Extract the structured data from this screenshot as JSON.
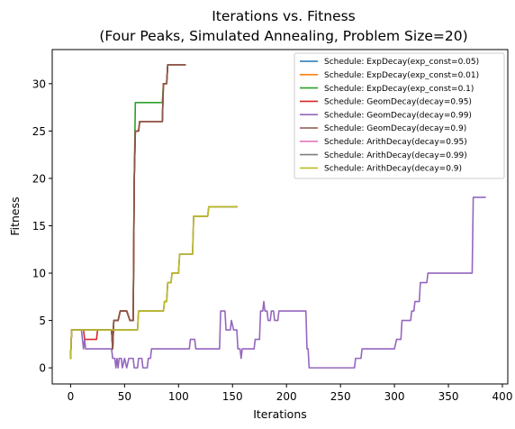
{
  "chart_data": {
    "type": "line",
    "title_line1": "Iterations vs. Fitness",
    "title_line2": "(Four Peaks, Simulated Annealing, Problem Size=20)",
    "xlabel": "Iterations",
    "ylabel": "Fitness",
    "xlim": [
      -17,
      405
    ],
    "ylim": [
      -1.7,
      33.6
    ],
    "xticks": [
      0,
      50,
      100,
      150,
      200,
      250,
      300,
      350,
      400
    ],
    "yticks": [
      0,
      5,
      10,
      15,
      20,
      25,
      30
    ],
    "grid": false,
    "legend_position": "top-right",
    "series": [
      {
        "name": "Schedule: ExpDecay(exp_const=0.05)",
        "color": "#1f77b4",
        "points": [
          [
            0,
            1
          ],
          [
            1,
            4
          ],
          [
            10,
            4
          ],
          [
            12,
            4
          ],
          [
            35,
            4
          ],
          [
            38,
            4
          ],
          [
            39,
            2
          ],
          [
            40,
            5
          ],
          [
            44,
            5
          ],
          [
            46,
            6
          ],
          [
            52,
            6
          ],
          [
            55,
            5
          ],
          [
            58,
            5
          ],
          [
            59,
            20
          ],
          [
            60,
            25
          ],
          [
            63,
            25
          ],
          [
            64,
            26
          ],
          [
            85,
            26
          ],
          [
            86,
            30
          ],
          [
            89,
            30
          ],
          [
            90,
            32
          ],
          [
            106,
            32
          ]
        ]
      },
      {
        "name": "Schedule: ExpDecay(exp_const=0.01)",
        "color": "#ff7f0e",
        "points": [
          [
            0,
            1
          ],
          [
            1,
            4
          ],
          [
            10,
            4
          ],
          [
            12,
            4
          ],
          [
            35,
            4
          ],
          [
            38,
            4
          ],
          [
            39,
            2
          ],
          [
            40,
            5
          ],
          [
            44,
            5
          ],
          [
            46,
            6
          ],
          [
            52,
            6
          ],
          [
            55,
            5
          ],
          [
            58,
            5
          ],
          [
            59,
            20
          ],
          [
            60,
            25
          ],
          [
            63,
            25
          ],
          [
            64,
            26
          ],
          [
            85,
            26
          ],
          [
            86,
            30
          ],
          [
            89,
            30
          ],
          [
            90,
            32
          ],
          [
            106,
            32
          ]
        ]
      },
      {
        "name": "Schedule: ExpDecay(exp_const=0.1)",
        "color": "#2ca02c",
        "points": [
          [
            0,
            1
          ],
          [
            1,
            4
          ],
          [
            10,
            4
          ],
          [
            12,
            4
          ],
          [
            35,
            4
          ],
          [
            38,
            4
          ],
          [
            39,
            2
          ],
          [
            40,
            5
          ],
          [
            44,
            5
          ],
          [
            46,
            6
          ],
          [
            52,
            6
          ],
          [
            55,
            5
          ],
          [
            58,
            5
          ],
          [
            59,
            20
          ],
          [
            60,
            28
          ],
          [
            85,
            28
          ],
          [
            86,
            30
          ],
          [
            89,
            30
          ],
          [
            90,
            32
          ],
          [
            106,
            32
          ]
        ]
      },
      {
        "name": "Schedule: GeomDecay(decay=0.95)",
        "color": "#d62728",
        "points": [
          [
            0,
            1
          ],
          [
            1,
            4
          ],
          [
            10,
            4
          ],
          [
            12,
            4
          ],
          [
            13,
            3
          ],
          [
            18,
            3
          ],
          [
            19,
            3
          ],
          [
            24,
            3
          ],
          [
            25,
            4
          ],
          [
            35,
            4
          ],
          [
            38,
            4
          ],
          [
            39,
            2
          ],
          [
            40,
            5
          ],
          [
            44,
            5
          ],
          [
            46,
            6
          ],
          [
            52,
            6
          ],
          [
            55,
            5
          ],
          [
            58,
            5
          ],
          [
            59,
            20
          ],
          [
            60,
            25
          ],
          [
            63,
            25
          ],
          [
            64,
            26
          ],
          [
            85,
            26
          ],
          [
            86,
            30
          ],
          [
            89,
            30
          ],
          [
            90,
            32
          ],
          [
            106,
            32
          ]
        ]
      },
      {
        "name": "Schedule: GeomDecay(decay=0.99)",
        "color": "#9467bd",
        "points": [
          [
            0,
            1
          ],
          [
            1,
            4
          ],
          [
            6,
            4
          ],
          [
            10,
            4
          ],
          [
            11,
            3
          ],
          [
            12,
            2
          ],
          [
            13,
            3
          ],
          [
            14,
            2
          ],
          [
            38,
            2
          ],
          [
            39,
            1
          ],
          [
            41,
            1
          ],
          [
            42,
            0
          ],
          [
            43,
            1
          ],
          [
            44,
            0
          ],
          [
            45,
            1
          ],
          [
            47,
            1
          ],
          [
            48,
            0
          ],
          [
            50,
            1
          ],
          [
            52,
            0
          ],
          [
            54,
            1
          ],
          [
            58,
            1
          ],
          [
            59,
            0
          ],
          [
            62,
            0
          ],
          [
            63,
            1
          ],
          [
            66,
            1
          ],
          [
            67,
            0
          ],
          [
            70,
            0
          ],
          [
            71,
            0
          ],
          [
            72,
            1
          ],
          [
            74,
            1
          ],
          [
            75,
            2
          ],
          [
            90,
            2
          ],
          [
            95,
            2
          ],
          [
            96,
            2
          ],
          [
            110,
            2
          ],
          [
            111,
            3
          ],
          [
            115,
            3
          ],
          [
            116,
            2
          ],
          [
            124,
            2
          ],
          [
            125,
            2
          ],
          [
            129,
            2
          ],
          [
            130,
            2
          ],
          [
            138,
            2
          ],
          [
            139,
            6
          ],
          [
            143,
            6
          ],
          [
            144,
            4
          ],
          [
            148,
            4
          ],
          [
            149,
            5
          ],
          [
            151,
            4
          ],
          [
            154,
            4
          ],
          [
            155,
            2
          ],
          [
            157,
            2
          ],
          [
            158,
            1
          ],
          [
            159,
            2
          ],
          [
            165,
            2
          ],
          [
            166,
            2
          ],
          [
            170,
            2
          ],
          [
            171,
            3
          ],
          [
            175,
            3
          ],
          [
            176,
            6
          ],
          [
            178,
            6
          ],
          [
            179,
            7
          ],
          [
            180,
            6
          ],
          [
            182,
            6
          ],
          [
            183,
            5
          ],
          [
            185,
            5
          ],
          [
            186,
            6
          ],
          [
            188,
            6
          ],
          [
            189,
            5
          ],
          [
            192,
            5
          ],
          [
            193,
            6
          ],
          [
            218,
            6
          ],
          [
            219,
            2
          ],
          [
            220,
            2
          ],
          [
            221,
            0
          ],
          [
            258,
            0
          ],
          [
            262,
            0
          ],
          [
            263,
            0
          ],
          [
            264,
            1
          ],
          [
            268,
            1
          ],
          [
            269,
            1
          ],
          [
            270,
            2
          ],
          [
            285,
            2
          ],
          [
            290,
            2
          ],
          [
            300,
            2
          ],
          [
            302,
            3
          ],
          [
            306,
            3
          ],
          [
            307,
            5
          ],
          [
            315,
            5
          ],
          [
            316,
            6
          ],
          [
            318,
            6
          ],
          [
            319,
            7
          ],
          [
            323,
            7
          ],
          [
            324,
            9
          ],
          [
            326,
            9
          ],
          [
            327,
            9
          ],
          [
            330,
            9
          ],
          [
            331,
            10
          ],
          [
            345,
            10
          ],
          [
            350,
            10
          ],
          [
            360,
            10
          ],
          [
            372,
            10
          ],
          [
            373,
            18
          ],
          [
            375,
            18
          ],
          [
            380,
            18
          ],
          [
            384,
            18
          ]
        ]
      },
      {
        "name": "Schedule: GeomDecay(decay=0.9)",
        "color": "#8c564b",
        "points": [
          [
            0,
            1
          ],
          [
            1,
            4
          ],
          [
            10,
            4
          ],
          [
            12,
            4
          ],
          [
            35,
            4
          ],
          [
            38,
            4
          ],
          [
            39,
            2
          ],
          [
            40,
            5
          ],
          [
            44,
            5
          ],
          [
            46,
            6
          ],
          [
            52,
            6
          ],
          [
            55,
            5
          ],
          [
            58,
            5
          ],
          [
            59,
            20
          ],
          [
            60,
            25
          ],
          [
            63,
            25
          ],
          [
            64,
            26
          ],
          [
            85,
            26
          ],
          [
            86,
            30
          ],
          [
            89,
            30
          ],
          [
            90,
            32
          ],
          [
            106,
            32
          ]
        ]
      },
      {
        "name": "Schedule: ArithDecay(decay=0.95)",
        "color": "#e377c2",
        "points": [
          [
            0,
            1
          ],
          [
            1,
            4
          ],
          [
            10,
            4
          ],
          [
            12,
            4
          ],
          [
            50,
            4
          ],
          [
            55,
            4
          ],
          [
            62,
            4
          ],
          [
            63,
            6
          ],
          [
            80,
            6
          ],
          [
            86,
            6
          ],
          [
            87,
            7
          ],
          [
            89,
            7
          ],
          [
            90,
            9
          ],
          [
            93,
            9
          ],
          [
            94,
            10
          ],
          [
            98,
            10
          ],
          [
            100,
            10
          ],
          [
            101,
            12
          ],
          [
            108,
            12
          ],
          [
            113,
            12
          ],
          [
            114,
            16
          ],
          [
            125,
            16
          ],
          [
            127,
            16
          ],
          [
            128,
            17
          ],
          [
            150,
            17
          ],
          [
            154,
            17
          ]
        ]
      },
      {
        "name": "Schedule: ArithDecay(decay=0.99)",
        "color": "#7f7f7f",
        "points": [
          [
            0,
            1
          ],
          [
            1,
            4
          ],
          [
            10,
            4
          ],
          [
            12,
            4
          ],
          [
            50,
            4
          ],
          [
            55,
            4
          ],
          [
            62,
            4
          ],
          [
            63,
            6
          ],
          [
            80,
            6
          ],
          [
            86,
            6
          ],
          [
            87,
            7
          ],
          [
            89,
            7
          ],
          [
            90,
            9
          ],
          [
            93,
            9
          ],
          [
            94,
            10
          ],
          [
            98,
            10
          ],
          [
            100,
            10
          ],
          [
            101,
            12
          ],
          [
            108,
            12
          ],
          [
            113,
            12
          ],
          [
            114,
            16
          ],
          [
            125,
            16
          ],
          [
            127,
            16
          ],
          [
            128,
            17
          ],
          [
            150,
            17
          ],
          [
            154,
            17
          ]
        ]
      },
      {
        "name": "Schedule: ArithDecay(decay=0.9)",
        "color": "#bcbd22",
        "points": [
          [
            0,
            1
          ],
          [
            1,
            4
          ],
          [
            10,
            4
          ],
          [
            12,
            4
          ],
          [
            50,
            4
          ],
          [
            55,
            4
          ],
          [
            62,
            4
          ],
          [
            63,
            6
          ],
          [
            80,
            6
          ],
          [
            86,
            6
          ],
          [
            87,
            7
          ],
          [
            89,
            7
          ],
          [
            90,
            9
          ],
          [
            93,
            9
          ],
          [
            94,
            10
          ],
          [
            98,
            10
          ],
          [
            100,
            10
          ],
          [
            101,
            12
          ],
          [
            108,
            12
          ],
          [
            113,
            12
          ],
          [
            114,
            16
          ],
          [
            125,
            16
          ],
          [
            127,
            16
          ],
          [
            128,
            17
          ],
          [
            150,
            17
          ],
          [
            154,
            17
          ]
        ]
      }
    ]
  }
}
